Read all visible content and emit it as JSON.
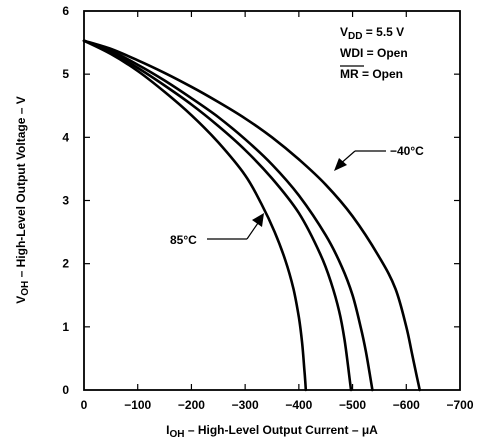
{
  "chart_data": {
    "type": "line",
    "xlabel_prefix": "I",
    "xlabel_sub": "OH",
    "xlabel_rest": " – High-Level Output Current – μA",
    "ylabel_prefix": "V",
    "ylabel_sub": "OH",
    "ylabel_rest": " – High-Level Output Voltage – V",
    "xlim": [
      0,
      -700
    ],
    "ylim": [
      0,
      6
    ],
    "x_ticks": [
      "0",
      "−100",
      "−200",
      "−300",
      "−400",
      "−500",
      "−600",
      "−700"
    ],
    "y_ticks": [
      "0",
      "1",
      "2",
      "3",
      "4",
      "5",
      "6"
    ],
    "grid": false,
    "conditions": {
      "vdd_prefix": "V",
      "vdd_sub": "DD",
      "vdd_rest": " = 5.5 V",
      "wdi": "WDI = Open",
      "mr_name": "MR",
      "mr_rest": " = Open"
    },
    "annotations": [
      {
        "text": "−40°C",
        "series": "−40°C"
      },
      {
        "text": "85°C",
        "series": "85°C"
      }
    ],
    "series": [
      {
        "name": "−40°C",
        "x": [
          0,
          -50,
          -100,
          -150,
          -200,
          -250,
          -300,
          -350,
          -400,
          -450,
          -500,
          -550,
          -580,
          -600,
          -610,
          -620,
          -625
        ],
        "y": [
          5.53,
          5.4,
          5.22,
          5.02,
          4.8,
          4.56,
          4.3,
          4.0,
          3.65,
          3.25,
          2.75,
          2.1,
          1.6,
          1.0,
          0.6,
          0.2,
          0
        ]
      },
      {
        "name": "",
        "x": [
          0,
          -50,
          -100,
          -150,
          -200,
          -250,
          -300,
          -350,
          -400,
          -450,
          -480,
          -500,
          -515,
          -525,
          -532,
          -537
        ],
        "y": [
          5.53,
          5.37,
          5.15,
          4.9,
          4.62,
          4.32,
          3.97,
          3.57,
          3.08,
          2.45,
          1.95,
          1.5,
          1.0,
          0.6,
          0.25,
          0
        ]
      },
      {
        "name": "",
        "x": [
          0,
          -50,
          -100,
          -150,
          -200,
          -250,
          -300,
          -350,
          -400,
          -440,
          -460,
          -475,
          -485,
          -492,
          -497
        ],
        "y": [
          5.53,
          5.35,
          5.1,
          4.82,
          4.52,
          4.18,
          3.8,
          3.35,
          2.8,
          2.15,
          1.7,
          1.25,
          0.8,
          0.35,
          0
        ]
      },
      {
        "name": "85°C",
        "x": [
          0,
          -50,
          -100,
          -150,
          -200,
          -250,
          -300,
          -330,
          -355,
          -375,
          -390,
          -400,
          -406,
          -410,
          -413
        ],
        "y": [
          5.53,
          5.32,
          5.05,
          4.72,
          4.35,
          3.92,
          3.4,
          2.95,
          2.5,
          2.05,
          1.6,
          1.15,
          0.75,
          0.35,
          0
        ]
      }
    ]
  }
}
